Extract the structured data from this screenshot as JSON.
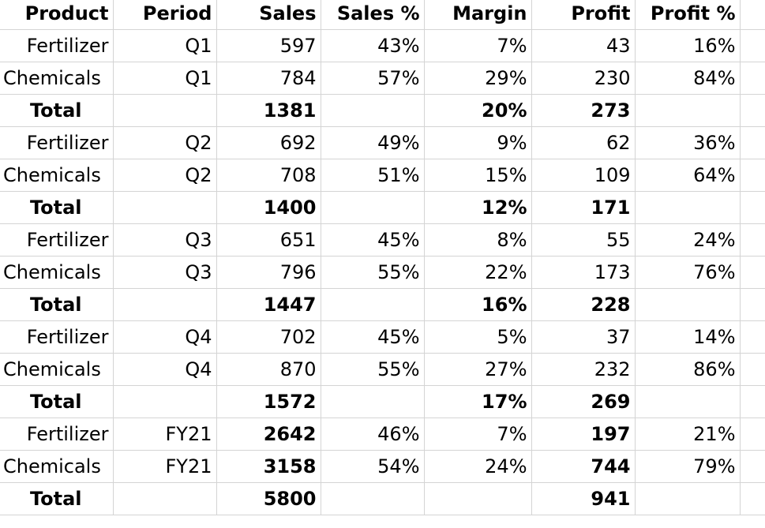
{
  "header": {
    "product": "Product",
    "period": "Period",
    "sales": "Sales",
    "sales_pct": "Sales %",
    "margin": "Margin",
    "profit": "Profit",
    "profit_pct": "Profit %"
  },
  "rows": [
    {
      "product": "Fertilizer",
      "period": "Q1",
      "sales": "597",
      "sales_pct": "43%",
      "margin": "7%",
      "profit": "43",
      "profit_pct": "16%"
    },
    {
      "product": "Chemicals",
      "period": "Q1",
      "sales": "784",
      "sales_pct": "57%",
      "margin": "29%",
      "profit": "230",
      "profit_pct": "84%"
    },
    {
      "product": "Total",
      "period": "",
      "sales": "1381",
      "sales_pct": "",
      "margin": "20%",
      "profit": "273",
      "profit_pct": ""
    },
    {
      "product": "Fertilizer",
      "period": "Q2",
      "sales": "692",
      "sales_pct": "49%",
      "margin": "9%",
      "profit": "62",
      "profit_pct": "36%"
    },
    {
      "product": "Chemicals",
      "period": "Q2",
      "sales": "708",
      "sales_pct": "51%",
      "margin": "15%",
      "profit": "109",
      "profit_pct": "64%"
    },
    {
      "product": "Total",
      "period": "",
      "sales": "1400",
      "sales_pct": "",
      "margin": "12%",
      "profit": "171",
      "profit_pct": ""
    },
    {
      "product": "Fertilizer",
      "period": "Q3",
      "sales": "651",
      "sales_pct": "45%",
      "margin": "8%",
      "profit": "55",
      "profit_pct": "24%"
    },
    {
      "product": "Chemicals",
      "period": "Q3",
      "sales": "796",
      "sales_pct": "55%",
      "margin": "22%",
      "profit": "173",
      "profit_pct": "76%"
    },
    {
      "product": "Total",
      "period": "",
      "sales": "1447",
      "sales_pct": "",
      "margin": "16%",
      "profit": "228",
      "profit_pct": ""
    },
    {
      "product": "Fertilizer",
      "period": "Q4",
      "sales": "702",
      "sales_pct": "45%",
      "margin": "5%",
      "profit": "37",
      "profit_pct": "14%"
    },
    {
      "product": "Chemicals",
      "period": "Q4",
      "sales": "870",
      "sales_pct": "55%",
      "margin": "27%",
      "profit": "232",
      "profit_pct": "86%"
    },
    {
      "product": "Total",
      "period": "",
      "sales": "1572",
      "sales_pct": "",
      "margin": "17%",
      "profit": "269",
      "profit_pct": ""
    },
    {
      "product": "Fertilizer",
      "period": "FY21",
      "sales": "2642",
      "sales_pct": "46%",
      "margin": "7%",
      "profit": "197",
      "profit_pct": "21%"
    },
    {
      "product": "Chemicals",
      "period": "FY21",
      "sales": "3158",
      "sales_pct": "54%",
      "margin": "24%",
      "profit": "744",
      "profit_pct": "79%"
    },
    {
      "product": "Total",
      "period": "",
      "sales": "5800",
      "sales_pct": "",
      "margin": "",
      "profit": "941",
      "profit_pct": ""
    }
  ],
  "colors": {
    "gridline": "#d4d4d4",
    "text": "#000000",
    "background": "#ffffff"
  }
}
